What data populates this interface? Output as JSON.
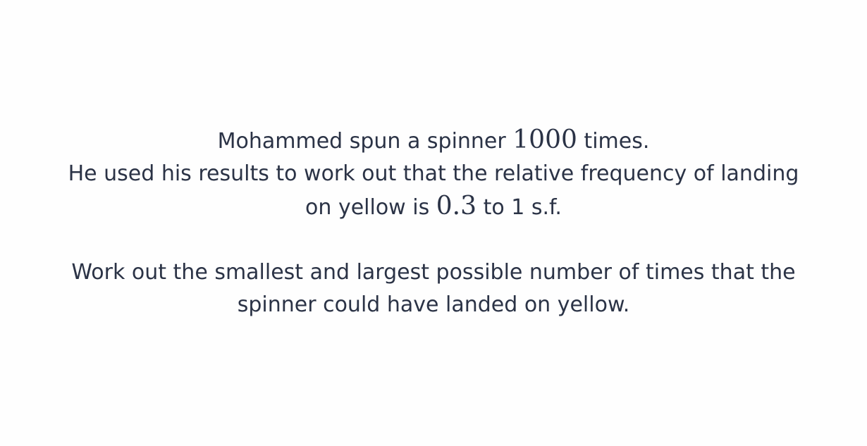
{
  "question": {
    "line1": {
      "pre": "Mohammed spun a spinner ",
      "math": "1000",
      "post": " times."
    },
    "line2": "He used his results to work out that the relative frequency of landing",
    "line3": {
      "pre": "on yellow is ",
      "math": "0.3",
      "post": " to 1 s.f."
    },
    "line4": "Work out the smallest and largest possible number of times that the",
    "line5": "spinner could have landed on yellow."
  },
  "colors": {
    "text": "#2b3346",
    "background": "#fefefe"
  }
}
